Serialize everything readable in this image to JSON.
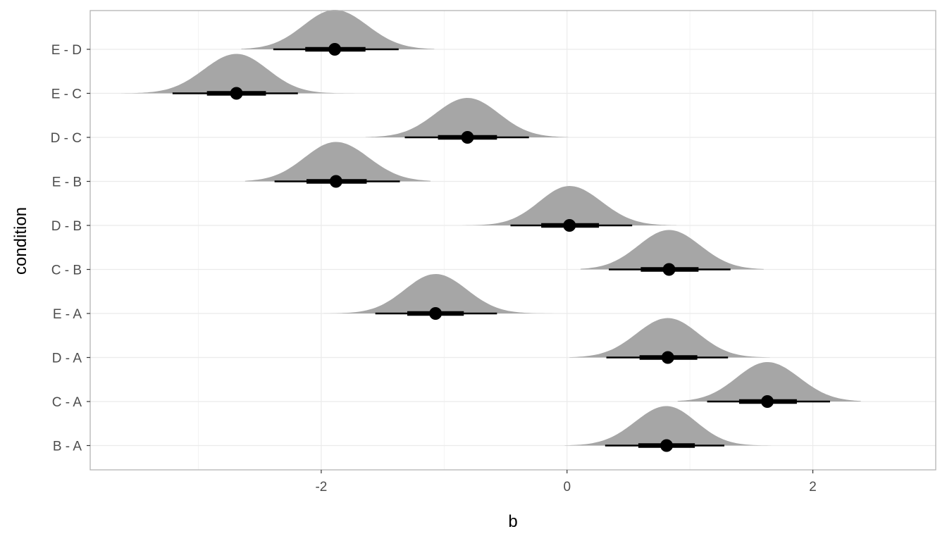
{
  "chart_data": {
    "type": "halfeye",
    "xlabel": "b",
    "ylabel": "condition",
    "xlim": [
      -3.88,
      3.0
    ],
    "x_ticks": [
      -2,
      0,
      2
    ],
    "x_tick_labels": [
      "-2",
      "0",
      "2"
    ],
    "categories": [
      "B - A",
      "C - A",
      "D - A",
      "E - A",
      "C - B",
      "D - B",
      "E - B",
      "D - C",
      "E - C",
      "E - D"
    ],
    "series": [
      {
        "category": "B - A",
        "median": 0.81,
        "ci66": [
          0.58,
          1.04
        ],
        "ci95": [
          0.31,
          1.28
        ],
        "range": [
          -0.02,
          1.66
        ]
      },
      {
        "category": "C - A",
        "median": 1.63,
        "ci66": [
          1.4,
          1.87
        ],
        "ci95": [
          1.14,
          2.14
        ],
        "range": [
          0.9,
          2.39
        ]
      },
      {
        "category": "D - A",
        "median": 0.82,
        "ci66": [
          0.59,
          1.06
        ],
        "ci95": [
          0.32,
          1.31
        ],
        "range": [
          0.02,
          1.65
        ]
      },
      {
        "category": "E - A",
        "median": -1.07,
        "ci66": [
          -1.3,
          -0.84
        ],
        "ci95": [
          -1.56,
          -0.57
        ],
        "range": [
          -1.98,
          0.13
        ]
      },
      {
        "category": "C - B",
        "median": 0.83,
        "ci66": [
          0.6,
          1.07
        ],
        "ci95": [
          0.34,
          1.33
        ],
        "range": [
          0.11,
          1.6
        ]
      },
      {
        "category": "D - B",
        "median": 0.02,
        "ci66": [
          -0.21,
          0.26
        ],
        "ci95": [
          -0.46,
          0.53
        ],
        "range": [
          -0.85,
          0.89
        ]
      },
      {
        "category": "E - B",
        "median": -1.88,
        "ci66": [
          -2.12,
          -1.63
        ],
        "ci95": [
          -2.38,
          -1.36
        ],
        "range": [
          -2.62,
          -1.11
        ]
      },
      {
        "category": "D - C",
        "median": -0.81,
        "ci66": [
          -1.05,
          -0.57
        ],
        "ci95": [
          -1.32,
          -0.31
        ],
        "range": [
          -1.64,
          0.01
        ]
      },
      {
        "category": "E - C",
        "median": -2.69,
        "ci66": [
          -2.93,
          -2.45
        ],
        "ci95": [
          -3.21,
          -2.19
        ],
        "range": [
          -3.63,
          -1.7
        ]
      },
      {
        "category": "E - D",
        "median": -1.89,
        "ci66": [
          -2.13,
          -1.64
        ],
        "ci95": [
          -2.39,
          -1.37
        ],
        "range": [
          -2.65,
          -1.08
        ]
      }
    ],
    "grid": true,
    "legend": "none",
    "colors": {
      "density": "#a6a6a6",
      "interval": "#000000",
      "grid_major": "#ebebeb",
      "grid_minor": "#f2f2f2",
      "panel_border": "#b3b3b3"
    }
  }
}
